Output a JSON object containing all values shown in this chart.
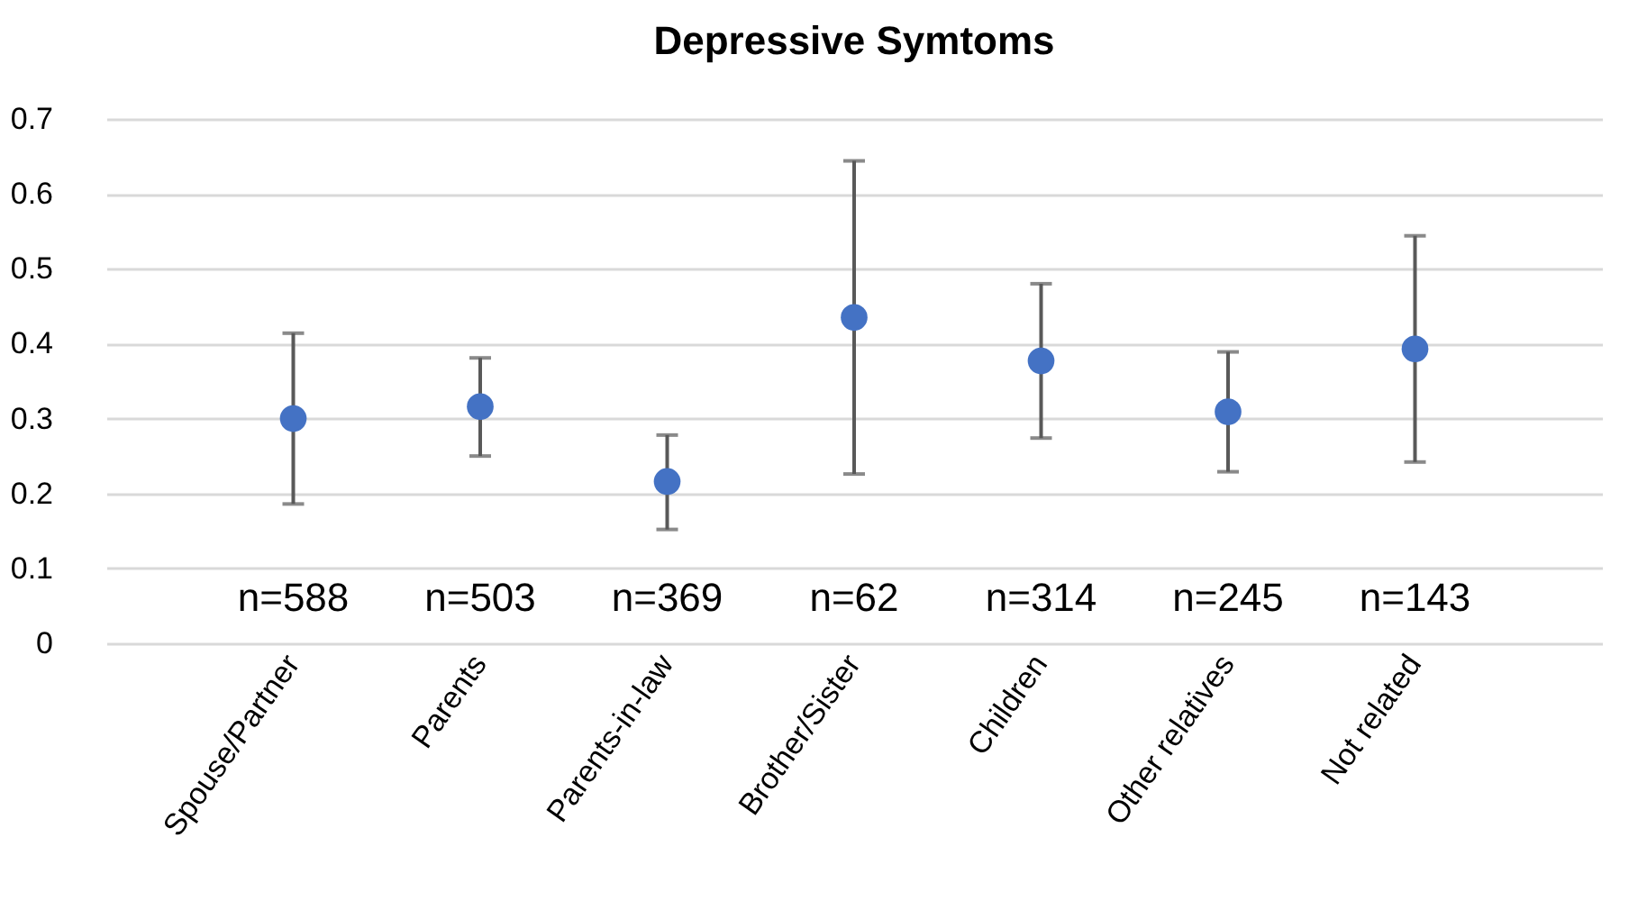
{
  "chart_data": {
    "type": "scatter",
    "title": "Depressive Symtoms",
    "categories": [
      "Spouse/Partner",
      "Parents",
      "Parents-in-law",
      "Brother/Sister",
      "Children",
      "Other relatives",
      "Not related"
    ],
    "series": [
      {
        "color": "#4472c4",
        "values": [
          0.3,
          0.316,
          0.216,
          0.435,
          0.377,
          0.309,
          0.393
        ],
        "errors": [
          [
            0.186,
            0.414
          ],
          [
            0.25,
            0.381
          ],
          [
            0.152,
            0.278
          ],
          [
            0.226,
            0.644
          ],
          [
            0.274,
            0.48
          ],
          [
            0.229,
            0.389
          ],
          [
            0.242,
            0.544
          ]
        ]
      }
    ],
    "ylim": [
      0,
      0.7
    ],
    "yticks": [
      0,
      0.1,
      0.2,
      0.3,
      0.4,
      0.5,
      0.6,
      0.7
    ],
    "grid": "y",
    "marker": "circle",
    "annotations": [
      "n=588",
      "n=503",
      "n=369",
      "n=62",
      "n=314",
      "n=245",
      "n=143"
    ]
  }
}
